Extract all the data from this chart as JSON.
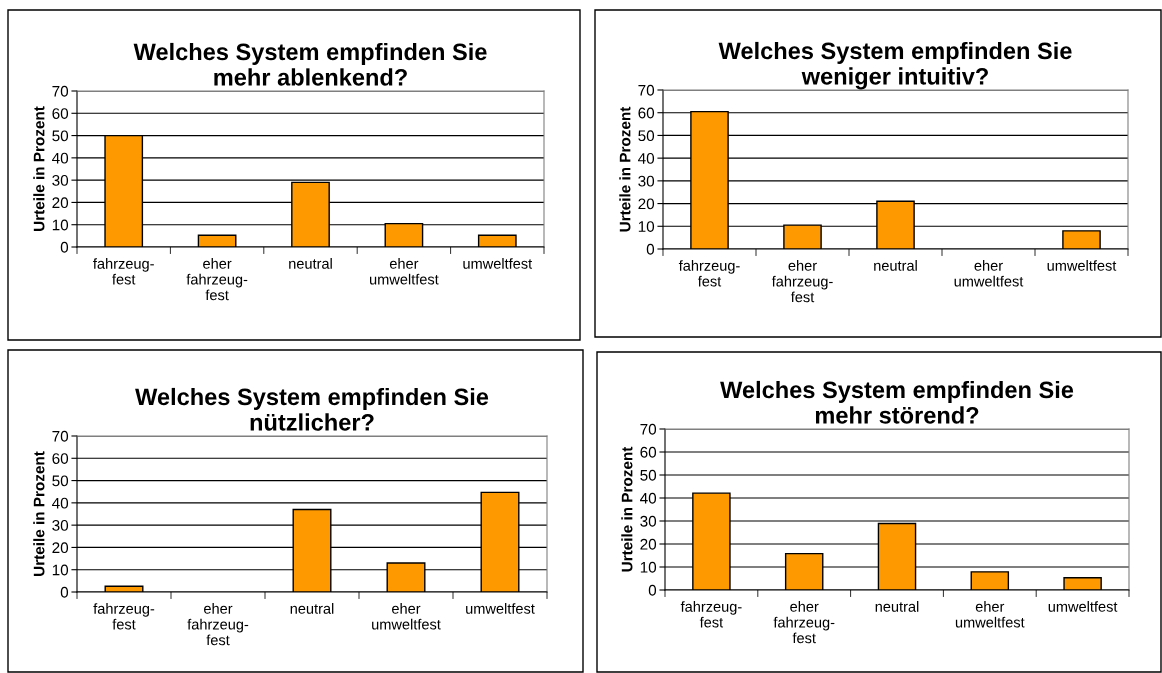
{
  "chart_data": [
    {
      "type": "bar",
      "title": "Welches System empfinden Sie\nmehr ablenkend?",
      "ylabel": "Urteile in Prozent",
      "categories": [
        "fahrzeug-\nfest",
        "eher\nfahrzeug-\nfest",
        "neutral",
        "eher\numweltfest",
        "umweltfest"
      ],
      "values": [
        50,
        5.3,
        29,
        10.5,
        5.3
      ],
      "color": "#ff9900",
      "ylim": [
        0,
        70
      ],
      "yticks": [
        0,
        10,
        20,
        30,
        40,
        50,
        60,
        70
      ],
      "grid": "y"
    },
    {
      "type": "bar",
      "title": "Welches System empfinden Sie\nweniger intuitiv?",
      "ylabel": "Urteile in Prozent",
      "categories": [
        "fahrzeug-\nfest",
        "eher\nfahrzeug-\nfest",
        "neutral",
        "eher\numweltfest",
        "umweltfest"
      ],
      "values": [
        60.5,
        10.5,
        21,
        0,
        8
      ],
      "color": "#ff9900",
      "ylim": [
        0,
        70
      ],
      "yticks": [
        0,
        10,
        20,
        30,
        40,
        50,
        60,
        70
      ],
      "grid": "y"
    },
    {
      "type": "bar",
      "title": "Welches System empfinden Sie\nnützlicher?",
      "ylabel": "Urteile in Prozent",
      "categories": [
        "fahrzeug-\nfest",
        "eher\nfahrzeug-\nfest",
        "neutral",
        "eher\numweltfest",
        "umweltfest"
      ],
      "values": [
        2.6,
        0,
        37,
        13,
        44.7
      ],
      "color": "#ff9900",
      "ylim": [
        0,
        70
      ],
      "yticks": [
        0,
        10,
        20,
        30,
        40,
        50,
        60,
        70
      ],
      "grid": "y"
    },
    {
      "type": "bar",
      "title": "Welches System empfinden Sie\nmehr störend?",
      "ylabel": "Urteile in Prozent",
      "categories": [
        "fahrzeug-\nfest",
        "eher\nfahrzeug-\nfest",
        "neutral",
        "eher\numweltfest",
        "umweltfest"
      ],
      "values": [
        42.1,
        15.8,
        28.9,
        7.9,
        5.3
      ],
      "color": "#ff9900",
      "ylim": [
        0,
        70
      ],
      "yticks": [
        0,
        10,
        20,
        30,
        40,
        50,
        60,
        70
      ],
      "grid": "y"
    }
  ]
}
